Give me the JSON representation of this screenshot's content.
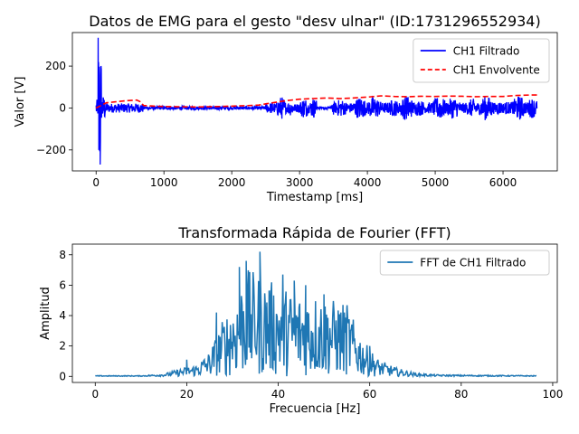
{
  "chart_data": [
    {
      "type": "line",
      "title": "Datos de EMG para el gesto \"desv ulnar\" (ID:1731296552934)",
      "xlabel": "Timestamp [ms]",
      "ylabel": "Valor [V]",
      "xlim": [
        -350,
        6800
      ],
      "ylim": [
        -300,
        360
      ],
      "xticks": [
        0,
        1000,
        2000,
        3000,
        4000,
        5000,
        6000
      ],
      "yticks": [
        -200,
        0,
        200
      ],
      "grid": false,
      "legend_position": "top-right",
      "series": [
        {
          "name": "CH1 Filtrado",
          "color": "#0000ff",
          "style": "solid",
          "segments": [
            {
              "x": [
                0,
                6500
              ],
              "peak": 6,
              "burst": [
                [
                  0,
                  30,
                  40
                ],
                [
                  30,
                  60,
                  335
                ],
                [
                  60,
                  80,
                  270
                ],
                [
                  80,
                  140,
                  60
                ],
                [
                  140,
                  700,
                  22
                ],
                [
                  700,
                  2500,
                  10
                ],
                [
                  2500,
                  3500,
                  55
                ],
                [
                  3500,
                  6500,
                  60
                ]
              ]
            }
          ],
          "key_points": [
            {
              "x": 30,
              "y": 335
            },
            {
              "x": 40,
              "y": -200
            },
            {
              "x": 60,
              "y": -270
            },
            {
              "x": 3300,
              "y": 8
            },
            {
              "x": 3500,
              "y": 20
            }
          ]
        },
        {
          "name": "CH1 Envolvente",
          "color": "#ff0000",
          "style": "dashed",
          "x": [
            0,
            150,
            300,
            450,
            600,
            650,
            700,
            900,
            1200,
            1500,
            1800,
            2100,
            2400,
            2600,
            2800,
            3000,
            3200,
            3400,
            3600,
            3800,
            4000,
            4200,
            4400,
            4600,
            4800,
            5000,
            5200,
            5400,
            5600,
            5800,
            6000,
            6200,
            6400,
            6500
          ],
          "y": [
            0,
            25,
            30,
            35,
            38,
            30,
            12,
            8,
            6,
            5,
            7,
            10,
            14,
            25,
            35,
            42,
            45,
            48,
            45,
            48,
            52,
            58,
            55,
            54,
            56,
            55,
            57,
            56,
            54,
            55,
            55,
            60,
            62,
            62
          ]
        }
      ]
    },
    {
      "type": "line",
      "title": "Transformada Rápida de Fourier (FFT)",
      "xlabel": "Frecuencia [Hz]",
      "ylabel": "Amplitud",
      "xlim": [
        -5,
        101
      ],
      "ylim": [
        -0.4,
        8.7
      ],
      "xticks": [
        0,
        20,
        40,
        60,
        80,
        100
      ],
      "yticks": [
        0,
        2,
        4,
        6,
        8
      ],
      "grid": false,
      "legend_position": "top-right",
      "series": [
        {
          "name": "FFT de CH1 Filtrado",
          "color": "#1f77b4",
          "style": "solid",
          "x_range": [
            0,
            96.6
          ],
          "envelope": [
            [
              0,
              0.05
            ],
            [
              10,
              0.05
            ],
            [
              15,
              0.15
            ],
            [
              19,
              0.5
            ],
            [
              22,
              0.7
            ],
            [
              25,
              1.5
            ],
            [
              28,
              3.5
            ],
            [
              31,
              5.0
            ],
            [
              33,
              6.5
            ],
            [
              36,
              6.0
            ],
            [
              40,
              5.5
            ],
            [
              44,
              5.0
            ],
            [
              48,
              5.0
            ],
            [
              52,
              4.6
            ],
            [
              55,
              4.4
            ],
            [
              57,
              3.0
            ],
            [
              59,
              2.0
            ],
            [
              62,
              1.0
            ],
            [
              66,
              0.5
            ],
            [
              70,
              0.2
            ],
            [
              75,
              0.1
            ],
            [
              96.6,
              0.05
            ]
          ],
          "peaks": [
            {
              "x": 20,
              "y": 1.1
            },
            {
              "x": 26.5,
              "y": 4.2
            },
            {
              "x": 31.5,
              "y": 7.2
            },
            {
              "x": 33,
              "y": 7.6
            },
            {
              "x": 36,
              "y": 8.2
            },
            {
              "x": 38,
              "y": 5.6
            },
            {
              "x": 41,
              "y": 6.7
            },
            {
              "x": 43.5,
              "y": 6.3
            },
            {
              "x": 46,
              "y": 6.0
            },
            {
              "x": 50,
              "y": 5.4
            },
            {
              "x": 55,
              "y": 4.5
            },
            {
              "x": 60,
              "y": 2.0
            }
          ]
        }
      ]
    }
  ]
}
